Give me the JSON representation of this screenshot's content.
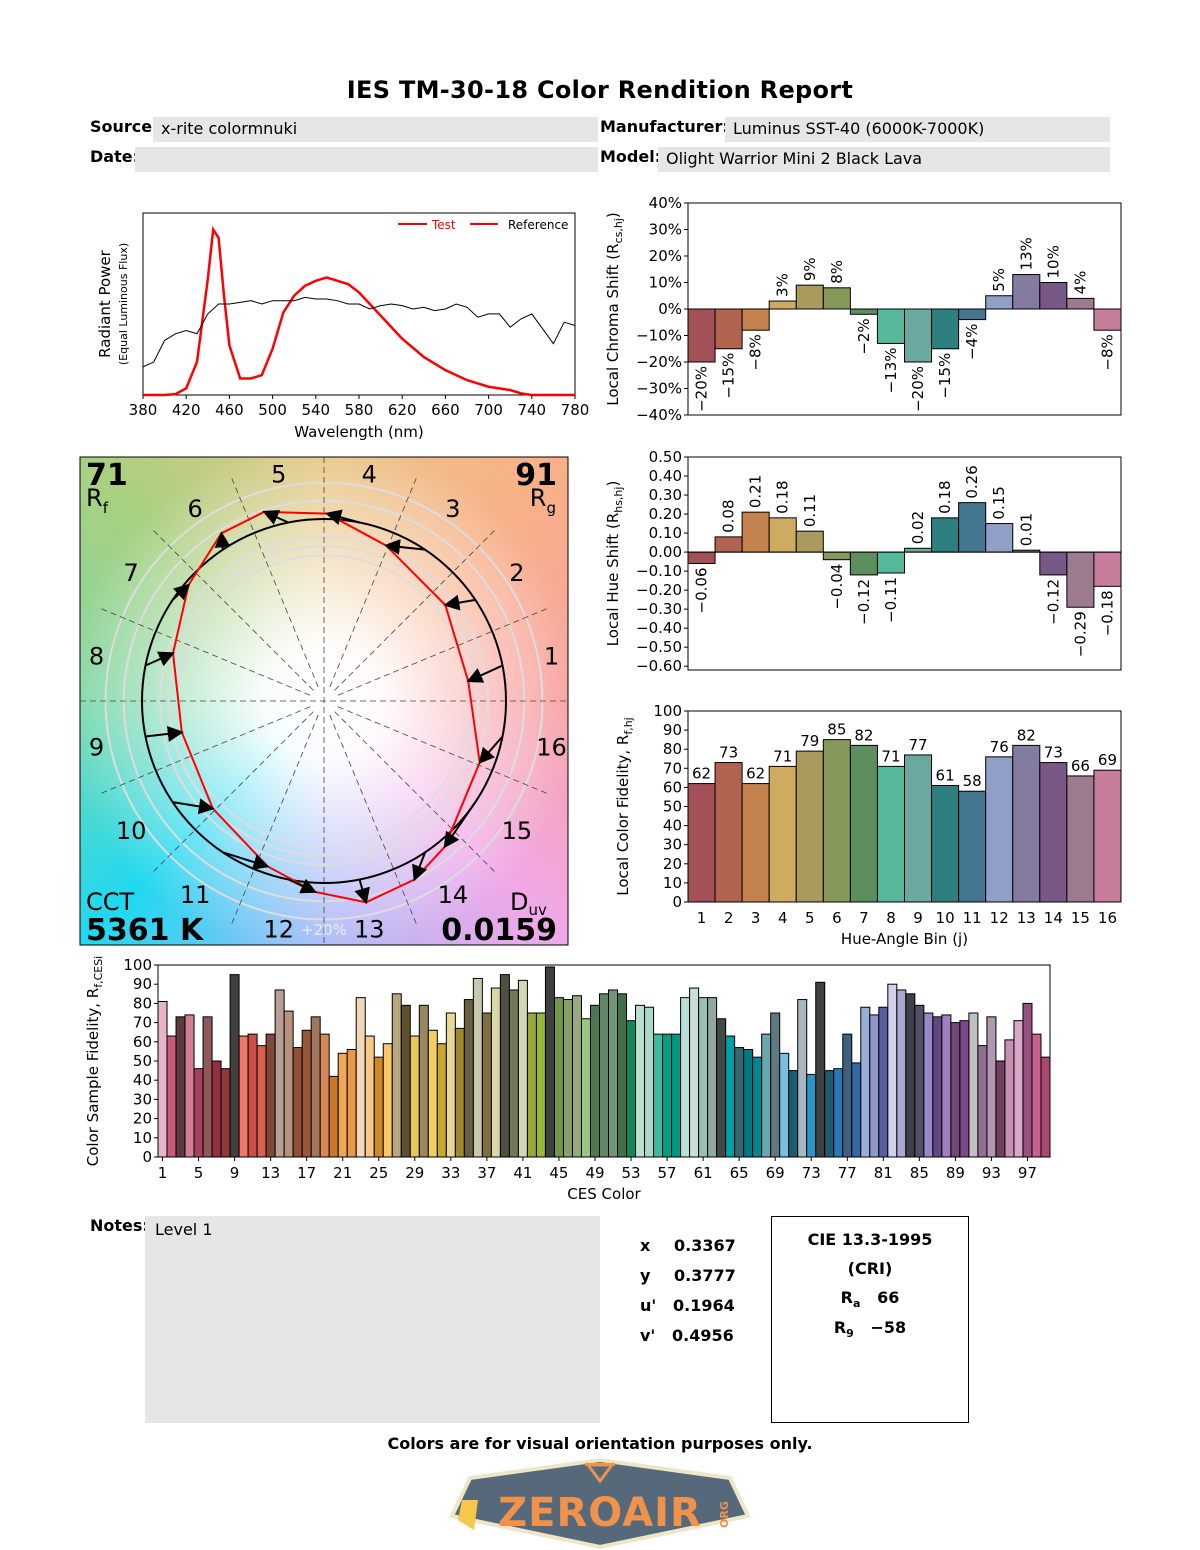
{
  "header": {
    "title": "IES TM-30-18 Color Rendition Report",
    "source_label": "Source:",
    "source_value": "x-rite colormnuki",
    "manufacturer_label": "Manufacturer:",
    "manufacturer_value": "Luminus SST-40 (6000K-7000K)",
    "date_label": "Date:",
    "date_value": "",
    "model_label": "Model:",
    "model_value": "Olight Warrior Mini 2 Black Lava"
  },
  "chart_data": [
    {
      "id": "spectrum",
      "type": "line",
      "xlabel": "Wavelength (nm)",
      "ylabel": "Radiant Power",
      "ylabel2": "(Equal Luminous Flux)",
      "xlim": [
        380,
        780
      ],
      "ylim": [
        0,
        1.1
      ],
      "xticks": [
        "380",
        "420",
        "460",
        "500",
        "540",
        "580",
        "620",
        "660",
        "700",
        "740",
        "780"
      ],
      "legend": {
        "position": "top-right",
        "test": "Test",
        "reference": "Reference"
      },
      "series": [
        {
          "name": "Test",
          "color": "#ff0000",
          "x": [
            380,
            400,
            410,
            420,
            430,
            440,
            445,
            450,
            455,
            460,
            470,
            480,
            490,
            500,
            510,
            520,
            530,
            540,
            550,
            560,
            570,
            580,
            590,
            600,
            620,
            640,
            660,
            680,
            700,
            720,
            730,
            740,
            780
          ],
          "y": [
            0,
            0,
            0.005,
            0.04,
            0.2,
            0.7,
            1.0,
            0.95,
            0.6,
            0.3,
            0.1,
            0.1,
            0.12,
            0.28,
            0.5,
            0.6,
            0.66,
            0.69,
            0.71,
            0.69,
            0.67,
            0.62,
            0.55,
            0.48,
            0.34,
            0.23,
            0.15,
            0.09,
            0.05,
            0.03,
            0.01,
            0,
            0
          ]
        },
        {
          "name": "Reference",
          "color": "#000000",
          "x": [
            380,
            390,
            400,
            410,
            420,
            430,
            440,
            450,
            460,
            470,
            480,
            490,
            500,
            510,
            520,
            530,
            540,
            550,
            560,
            570,
            580,
            590,
            600,
            610,
            620,
            630,
            640,
            650,
            660,
            670,
            680,
            690,
            700,
            710,
            720,
            730,
            740,
            750,
            760,
            770,
            780
          ],
          "y": [
            0.17,
            0.2,
            0.33,
            0.37,
            0.39,
            0.37,
            0.49,
            0.55,
            0.55,
            0.56,
            0.57,
            0.55,
            0.57,
            0.57,
            0.57,
            0.59,
            0.58,
            0.58,
            0.57,
            0.55,
            0.55,
            0.52,
            0.54,
            0.55,
            0.54,
            0.52,
            0.53,
            0.51,
            0.52,
            0.55,
            0.53,
            0.47,
            0.49,
            0.49,
            0.41,
            0.46,
            0.49,
            0.4,
            0.31,
            0.44,
            0.42
          ]
        }
      ]
    },
    {
      "id": "chroma",
      "type": "bar",
      "ylabel": "Local Chroma Shift (R",
      "ylabel_sub": "cs,hj",
      "ylabel_end": ")",
      "ylim": [
        -40,
        40
      ],
      "yticks": [
        "−40%",
        "−30%",
        "−20%",
        "−10%",
        "0%",
        "10%",
        "20%",
        "30%",
        "40%"
      ],
      "values": [
        -20,
        -15,
        -8,
        3,
        9,
        8,
        -2,
        -13,
        -20,
        -15,
        -4,
        5,
        13,
        10,
        4,
        -8
      ],
      "labels": [
        "−20%",
        "−15%",
        "−8%",
        "3%",
        "9%",
        "8%",
        "−2%",
        "−13%",
        "−20%",
        "−15%",
        "−4%",
        "5%",
        "13%",
        "10%",
        "4%",
        "−8%"
      ]
    },
    {
      "id": "hue",
      "type": "bar",
      "ylabel": "Local Hue Shift (R",
      "ylabel_sub": "hs,hj",
      "ylabel_end": ")",
      "ylim": [
        -0.62,
        0.5
      ],
      "yticks": [
        "−0.60",
        "−0.50",
        "−0.40",
        "−0.30",
        "−0.20",
        "−0.10",
        "0.00",
        "0.10",
        "0.20",
        "0.30",
        "0.40",
        "0.50"
      ],
      "values": [
        -0.06,
        0.08,
        0.21,
        0.18,
        0.11,
        -0.04,
        -0.12,
        -0.11,
        0.02,
        0.18,
        0.26,
        0.15,
        0.01,
        -0.12,
        -0.29,
        -0.18
      ],
      "labels": [
        "−0.06",
        "0.08",
        "0.21",
        "0.18",
        "0.11",
        "−0.04",
        "−0.12",
        "−0.11",
        "0.02",
        "0.18",
        "0.26",
        "0.15",
        "0.01",
        "−0.12",
        "−0.29",
        "−0.18"
      ]
    },
    {
      "id": "fidelity",
      "type": "bar",
      "xlabel": "Hue-Angle Bin (j)",
      "ylabel": "Local Color Fidelity, R",
      "ylabel_sub": "f,hj",
      "ylim": [
        0,
        100
      ],
      "yticks": [
        "0",
        "10",
        "20",
        "30",
        "40",
        "50",
        "60",
        "70",
        "80",
        "90",
        "100"
      ],
      "categories": [
        "1",
        "2",
        "3",
        "4",
        "5",
        "6",
        "7",
        "8",
        "9",
        "10",
        "11",
        "12",
        "13",
        "14",
        "15",
        "16"
      ],
      "values": [
        62,
        73,
        62,
        71,
        79,
        85,
        82,
        71,
        77,
        61,
        58,
        76,
        82,
        73,
        66,
        69
      ]
    },
    {
      "id": "ces",
      "type": "bar",
      "xlabel": "CES Color",
      "ylabel": "Color Sample Fidelity, R",
      "ylabel_sub": "f,CESi",
      "ylim": [
        0,
        100
      ],
      "yticks": [
        "0",
        "10",
        "20",
        "30",
        "40",
        "50",
        "60",
        "70",
        "80",
        "90",
        "100"
      ],
      "xticks": [
        "1",
        "5",
        "9",
        "13",
        "17",
        "21",
        "25",
        "29",
        "33",
        "37",
        "41",
        "45",
        "49",
        "53",
        "57",
        "61",
        "65",
        "69",
        "73",
        "77",
        "81",
        "85",
        "89",
        "93",
        "97"
      ],
      "values": [
        81,
        63,
        73,
        74,
        46,
        73,
        50,
        46,
        95,
        63,
        64,
        58,
        64,
        87,
        76,
        57,
        66,
        73,
        64,
        42,
        54,
        56,
        83,
        63,
        52,
        59,
        85,
        79,
        63,
        79,
        66,
        59,
        75,
        67,
        82,
        93,
        75,
        88,
        95,
        87,
        92,
        75,
        75,
        99,
        83,
        82,
        84,
        72,
        79,
        85,
        87,
        85,
        71,
        79,
        78,
        64,
        64,
        64,
        83,
        88,
        83,
        83,
        72,
        63,
        57,
        56,
        52,
        64,
        75,
        54,
        45,
        82,
        43,
        91,
        45,
        46,
        64,
        49,
        78,
        74,
        78,
        90,
        87,
        85,
        79,
        75,
        73,
        74,
        70,
        71,
        75,
        58,
        73,
        50,
        61,
        71,
        80,
        64,
        52
      ],
      "colors": [
        "#e8b4c8",
        "#c85a7a",
        "#5a3a40",
        "#d08090",
        "#a84060",
        "#905858",
        "#903040",
        "#903838",
        "#404040",
        "#f07868",
        "#c85048",
        "#d86050",
        "#804838",
        "#b8a098",
        "#b89080",
        "#905038",
        "#985838",
        "#a07860",
        "#d88858",
        "#c87828",
        "#f0a858",
        "#e89848",
        "#f0d8b8",
        "#f8c888",
        "#d08820",
        "#f8c868",
        "#b8a880",
        "#605030",
        "#e8c858",
        "#988860",
        "#f0d060",
        "#c8a830",
        "#e8d898",
        "#a08830",
        "#686040",
        "#c8c8b0",
        "#807040",
        "#d8d8a8",
        "#505040",
        "#707858",
        "#d0d8b8",
        "#98a838",
        "#98b838",
        "#404040",
        "#709848",
        "#88a068",
        "#98a880",
        "#98c880",
        "#507850",
        "#608868",
        "#709878",
        "#407048",
        "#108858",
        "#b8e0d0",
        "#a8d8c8",
        "#40b8a0",
        "#00a088",
        "#009880",
        "#b8e0d8",
        "#c8e0d8",
        "#98c0b8",
        "#90a8a0",
        "#404848",
        "#00a0a8",
        "#306870",
        "#007880",
        "#008890",
        "#68a8b0",
        "#607880",
        "#78c0e0",
        "#186070",
        "#a8b8c0",
        "#2898c8",
        "#404040",
        "#205870",
        "#2878b8",
        "#406080",
        "#3068a8",
        "#98b0d8",
        "#9098c8",
        "#5860a0",
        "#d0d0e8",
        "#a8a8d0",
        "#404048",
        "#505068",
        "#9888c8",
        "#604880",
        "#a080c0",
        "#704878",
        "#784888",
        "#c0c0c0",
        "#907090",
        "#b098b0",
        "#704060",
        "#c890b0",
        "#d8a8c8",
        "#985080",
        "#c86090",
        "#a84870"
      ]
    }
  ],
  "bin_colors": [
    "#a35058",
    "#b06450",
    "#c4834e",
    "#cfab62",
    "#a99b5e",
    "#86995a",
    "#5f8e5e",
    "#55b89a",
    "#6aa8a0",
    "#2e7f80",
    "#43778f",
    "#8f9fc6",
    "#837ca0",
    "#785887",
    "#9c7a90",
    "#c67c9a"
  ],
  "vector_graphic": {
    "rf_value": "71",
    "rf_label": "R",
    "rf_sub": "f",
    "rg_value": "91",
    "rg_label": "R",
    "rg_sub": "g",
    "cct_label": "CCT",
    "cct_value": "5361 K",
    "duv_label": "D",
    "duv_sub": "uv",
    "duv_value": "0.0159",
    "ring_label": "+20%",
    "bin_labels": [
      "1",
      "2",
      "3",
      "4",
      "5",
      "6",
      "7",
      "8",
      "9",
      "10",
      "11",
      "12",
      "13",
      "14",
      "15",
      "16"
    ],
    "test_color": "#ff0000",
    "reference_color": "#000000"
  },
  "notes": {
    "label": "Notes:",
    "value": "Level 1"
  },
  "chromaticity": {
    "x_label": "x",
    "x_value": "0.3367",
    "y_label": "y",
    "y_value": "0.3777",
    "u_label": "u'",
    "u_value": "0.1964",
    "v_label": "v'",
    "v_value": "0.4956"
  },
  "cri": {
    "title": "CIE 13.3-1995",
    "subtitle": "(CRI)",
    "ra_label": "R",
    "ra_sub": "a",
    "ra_value": "66",
    "r9_label": "R",
    "r9_sub": "9",
    "r9_value": "−58"
  },
  "watermark": {
    "text": "ZEROAIR",
    "suffix": "ORG"
  },
  "footer": "Colors are for visual orientation purposes only."
}
